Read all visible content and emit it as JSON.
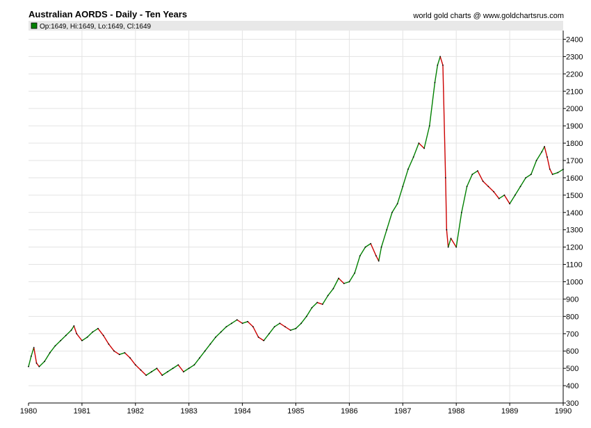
{
  "header": {
    "title": "Australian AORDS - Daily - Ten Years",
    "credit": "world gold charts @ www.goldchartsrus.com"
  },
  "ohlc_bar": {
    "text": "Op:1649, Hi:1649, Lo:1649, Cl:1649",
    "swatch_color": "#008000"
  },
  "colors": {
    "up": "#008000",
    "down": "#cc0000",
    "line": "#000000",
    "grid": "#e3e3e3",
    "ohlc_bg": "#e8e8e8"
  },
  "chart_data": {
    "type": "line",
    "title": "Australian AORDS - Daily - Ten Years",
    "xlabel": "",
    "ylabel": "",
    "xlim": [
      1980,
      1990
    ],
    "ylim": [
      300,
      2450
    ],
    "x_ticks": [
      "1980",
      "1981",
      "1982",
      "1983",
      "1984",
      "1985",
      "1986",
      "1987",
      "1988",
      "1989",
      "1990"
    ],
    "y_ticks": [
      "300",
      "400",
      "500",
      "600",
      "700",
      "800",
      "900",
      "1000",
      "1100",
      "1200",
      "1300",
      "1400",
      "1500",
      "1600",
      "1700",
      "1800",
      "1900",
      "2000",
      "2100",
      "2200",
      "2300",
      "2400"
    ],
    "grid": true,
    "y_axis_position": "right",
    "series": [
      {
        "x": [
          1980.0,
          1980.05,
          1980.1,
          1980.15,
          1980.2,
          1980.3,
          1980.4,
          1980.5,
          1980.6,
          1980.7,
          1980.8,
          1980.85,
          1980.9,
          1981.0,
          1981.1,
          1981.2,
          1981.3,
          1981.4,
          1981.5,
          1981.6,
          1981.7,
          1981.8,
          1981.9,
          1982.0,
          1982.1,
          1982.2,
          1982.3,
          1982.4,
          1982.5,
          1982.6,
          1982.7,
          1982.8,
          1982.9,
          1983.0,
          1983.1,
          1983.2,
          1983.3,
          1983.4,
          1983.5,
          1983.6,
          1983.7,
          1983.8,
          1983.9,
          1984.0,
          1984.1,
          1984.2,
          1984.3,
          1984.4,
          1984.5,
          1984.6,
          1984.7,
          1984.8,
          1984.9,
          1985.0,
          1985.1,
          1985.2,
          1985.3,
          1985.4,
          1985.5,
          1985.6,
          1985.7,
          1985.8,
          1985.9,
          1986.0,
          1986.1,
          1986.2,
          1986.3,
          1986.4,
          1986.5,
          1986.55,
          1986.6,
          1986.7,
          1986.8,
          1986.9,
          1987.0,
          1987.1,
          1987.2,
          1987.3,
          1987.4,
          1987.5,
          1987.6,
          1987.65,
          1987.7,
          1987.75,
          1987.8,
          1987.82,
          1987.85,
          1987.9,
          1988.0,
          1988.1,
          1988.2,
          1988.3,
          1988.4,
          1988.5,
          1988.6,
          1988.7,
          1988.8,
          1988.9,
          1989.0,
          1989.1,
          1989.2,
          1989.3,
          1989.4,
          1989.5,
          1989.6,
          1989.65,
          1989.7,
          1989.75,
          1989.8,
          1989.9,
          1990.0
        ],
        "y": [
          510,
          570,
          620,
          530,
          510,
          540,
          590,
          630,
          660,
          690,
          720,
          745,
          700,
          660,
          680,
          710,
          730,
          690,
          640,
          600,
          580,
          590,
          560,
          520,
          490,
          460,
          480,
          500,
          460,
          480,
          500,
          520,
          480,
          500,
          520,
          560,
          600,
          640,
          680,
          710,
          740,
          760,
          780,
          760,
          770,
          740,
          680,
          660,
          700,
          740,
          760,
          740,
          720,
          730,
          760,
          800,
          850,
          880,
          870,
          920,
          960,
          1020,
          990,
          1000,
          1050,
          1150,
          1200,
          1220,
          1150,
          1120,
          1200,
          1300,
          1400,
          1450,
          1550,
          1650,
          1720,
          1800,
          1770,
          1900,
          2150,
          2250,
          2300,
          2250,
          1600,
          1300,
          1200,
          1250,
          1200,
          1400,
          1550,
          1620,
          1640,
          1580,
          1550,
          1520,
          1480,
          1500,
          1450,
          1500,
          1550,
          1600,
          1620,
          1700,
          1750,
          1780,
          1720,
          1650,
          1620,
          1630,
          1649
        ]
      }
    ]
  }
}
